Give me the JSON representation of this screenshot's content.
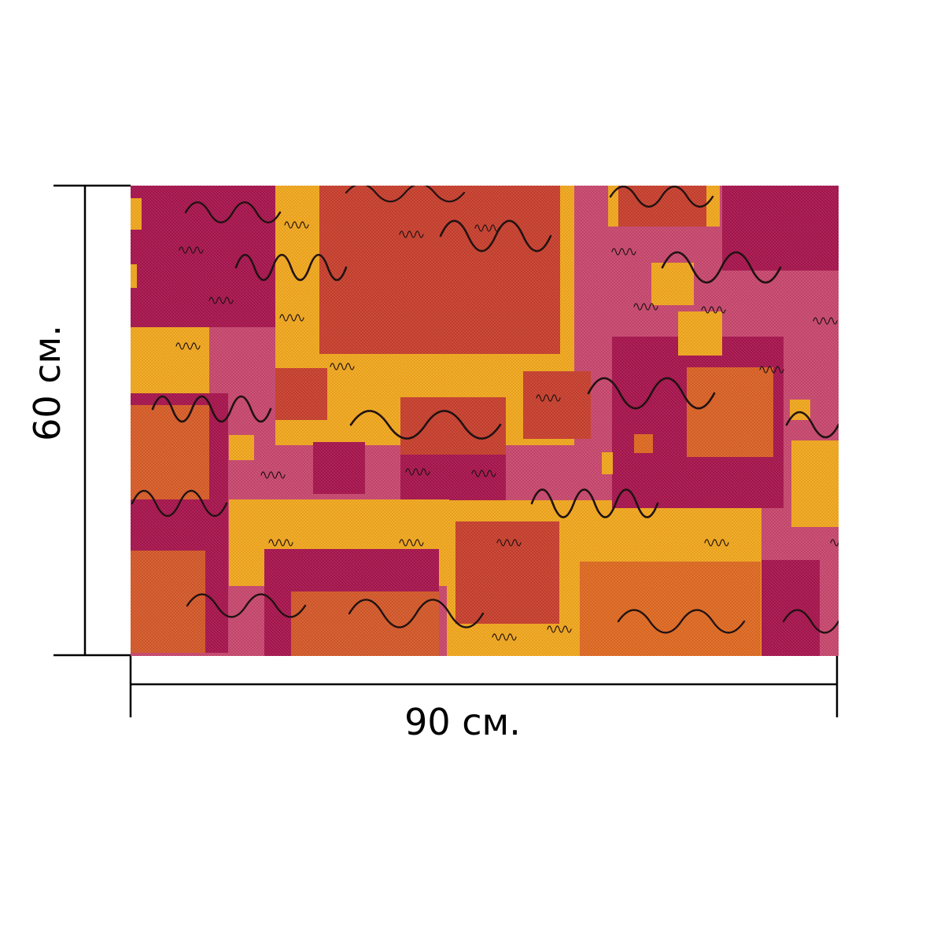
{
  "product": {
    "width_label": "90 см.",
    "height_label": "60 см.",
    "aspect_ratio": "3:2",
    "pattern": {
      "description_icon": "abstract-squares-pattern",
      "colors": {
        "background": "#C8486E",
        "magenta": "#A8154E",
        "rust": "#C8402E",
        "orange": "#E06A22",
        "yellow": "#F2A81E",
        "squiggle": "#1A0A0A"
      }
    }
  },
  "dimension_lines": {
    "color": "#000000"
  }
}
